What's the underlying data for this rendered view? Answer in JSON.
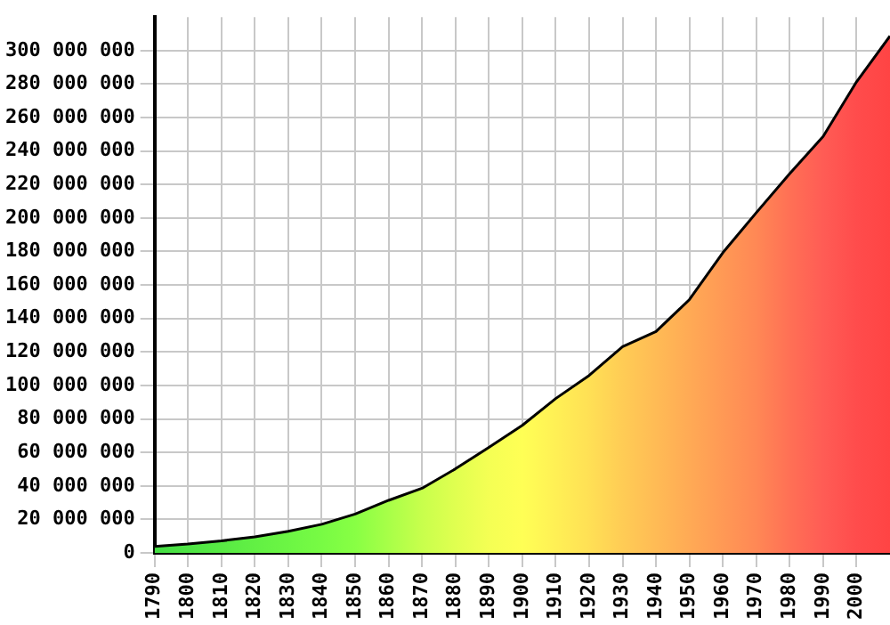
{
  "chart_data": {
    "type": "area",
    "x": [
      1790,
      1800,
      1810,
      1820,
      1830,
      1840,
      1850,
      1860,
      1870,
      1880,
      1890,
      1900,
      1910,
      1920,
      1930,
      1940,
      1950,
      1960,
      1970,
      1980,
      1990,
      2000,
      2010
    ],
    "series": [
      {
        "color": "#000000",
        "colors": [
          "#44dd44",
          "#4ee444",
          "#58ea44",
          "#62f044",
          "#6cf644",
          "#78fb44",
          "#88ff44",
          "#a8ff48",
          "#c8ff4c",
          "#e0ff50",
          "#f4ff54",
          "#ffff55",
          "#fff055",
          "#ffe055",
          "#ffcc55",
          "#ffbb55",
          "#ffaa55",
          "#ff9955",
          "#ff8855",
          "#ff7055",
          "#ff5c55",
          "#ff4c4c",
          "#ff4444"
        ],
        "values": [
          3900000,
          5300000,
          7200000,
          9600000,
          12900000,
          17100000,
          23200000,
          31400000,
          38600000,
          50200000,
          63000000,
          76200000,
          92200000,
          106000000,
          123200000,
          132200000,
          151300000,
          179300000,
          203200000,
          226500000,
          248700000,
          281400000,
          308700000
        ]
      }
    ],
    "xlim": [
      1790,
      2010
    ],
    "xticks": [
      1790,
      1800,
      1810,
      1820,
      1830,
      1840,
      1850,
      1860,
      1870,
      1880,
      1890,
      1900,
      1910,
      1920,
      1930,
      1940,
      1950,
      1960,
      1970,
      1980,
      1990,
      2000
    ],
    "ylim": [
      0,
      320000000
    ],
    "yticks": [
      0,
      {
        "value": 20000000,
        "label": "20 000 000"
      },
      {
        "value": 40000000,
        "label": "40 000 000"
      },
      {
        "value": 60000000,
        "label": "60 000 000"
      },
      {
        "value": 80000000,
        "label": "80 000 000"
      },
      {
        "value": 100000000,
        "label": "100 000 000"
      },
      {
        "value": 120000000,
        "label": "120 000 000"
      },
      {
        "value": 140000000,
        "label": "140 000 000"
      },
      {
        "value": 160000000,
        "label": "160 000 000"
      },
      {
        "value": 180000000,
        "label": "180 000 000"
      },
      {
        "value": 200000000,
        "label": "200 000 000"
      },
      {
        "value": 220000000,
        "label": "220 000 000"
      },
      {
        "value": 240000000,
        "label": "240 000 000"
      },
      {
        "value": 260000000,
        "label": "260 000 000"
      },
      {
        "value": 280000000,
        "label": "280 000 000"
      },
      {
        "value": 300000000,
        "label": "300 000 000"
      }
    ],
    "grid": true,
    "legend": false
  }
}
